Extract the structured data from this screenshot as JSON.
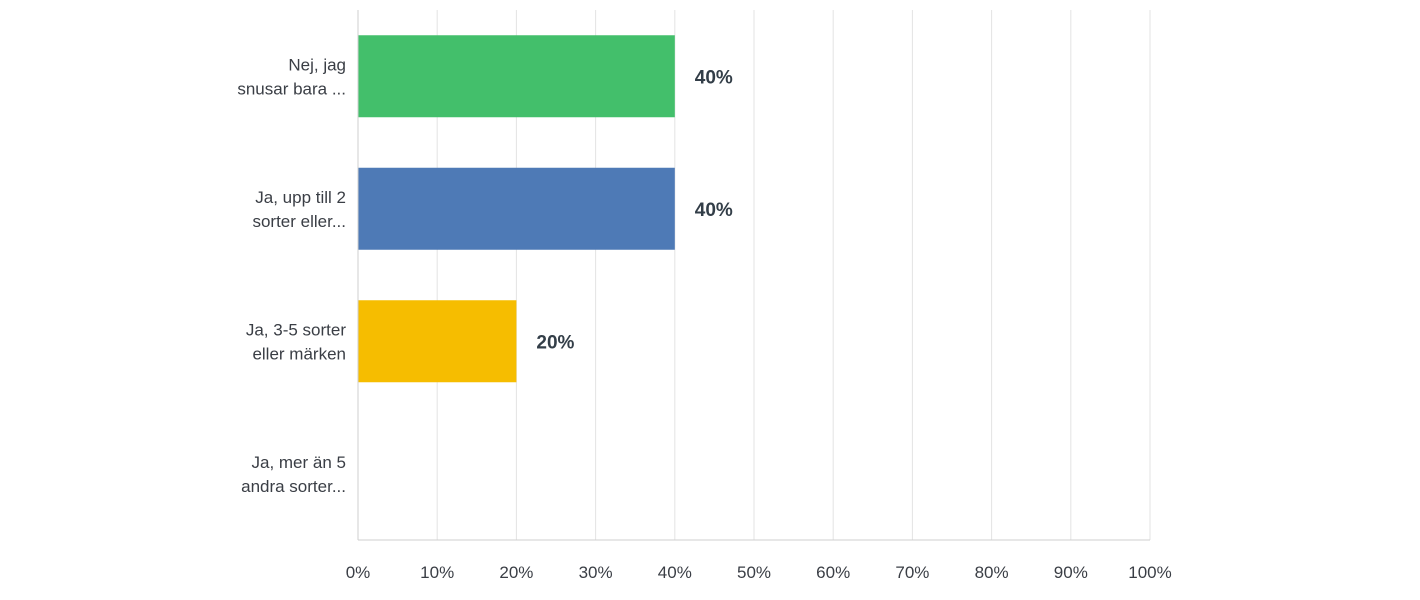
{
  "chart_data": {
    "type": "bar",
    "orientation": "horizontal",
    "categories": [
      [
        "Nej, jag",
        "snusar bara ..."
      ],
      [
        "Ja, upp till 2",
        "sorter eller..."
      ],
      [
        "Ja, 3-5 sorter",
        "eller märken"
      ],
      [
        "Ja, mer än 5",
        "andra sorter..."
      ]
    ],
    "values": [
      40,
      40,
      20,
      0
    ],
    "value_labels": [
      "40%",
      "40%",
      "20%",
      ""
    ],
    "colors": [
      "#43bf6b",
      "#4e7ab6",
      "#f6bd00",
      "#f05b4f"
    ],
    "x_ticks": [
      "0%",
      "10%",
      "20%",
      "30%",
      "40%",
      "50%",
      "60%",
      "70%",
      "80%",
      "90%",
      "100%"
    ],
    "xlim": [
      0,
      100
    ],
    "grid": true,
    "legend": "none",
    "title": "",
    "xlabel": "",
    "ylabel": ""
  }
}
